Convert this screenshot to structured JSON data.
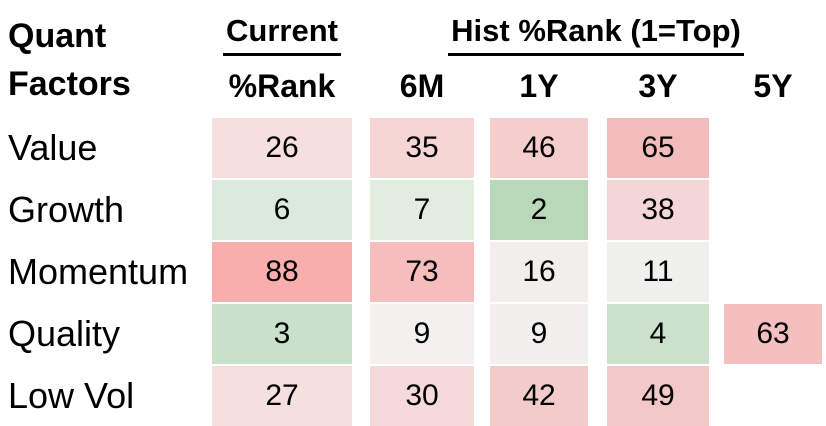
{
  "table": {
    "title_line1": "Quant",
    "title_line2": "Factors",
    "group_headers": [
      "Current",
      "Hist %Rank (1=Top)"
    ],
    "column_headers": [
      "%Rank",
      "6M",
      "1Y",
      "3Y",
      "5Y"
    ],
    "rows": [
      {
        "label": "Value",
        "cells": [
          {
            "value": "26",
            "color": "#f7dedf"
          },
          {
            "value": "35",
            "color": "#f6d6d5"
          },
          {
            "value": "46",
            "color": "#f5cdcd"
          },
          {
            "value": "65",
            "color": "#f3bcbc"
          },
          {
            "value": null,
            "color": null
          }
        ]
      },
      {
        "label": "Growth",
        "cells": [
          {
            "value": "6",
            "color": "#dceadd"
          },
          {
            "value": "7",
            "color": "#e2ecdf"
          },
          {
            "value": "2",
            "color": "#b9d8ba"
          },
          {
            "value": "38",
            "color": "#f5d6d6"
          },
          {
            "value": null,
            "color": null
          }
        ]
      },
      {
        "label": "Momentum",
        "cells": [
          {
            "value": "88",
            "color": "#f9aeae"
          },
          {
            "value": "73",
            "color": "#f7bcbc"
          },
          {
            "value": "16",
            "color": "#f2eeec"
          },
          {
            "value": "11",
            "color": "#f0f0ee"
          },
          {
            "value": null,
            "color": null
          }
        ]
      },
      {
        "label": "Quality",
        "cells": [
          {
            "value": "3",
            "color": "#c9e0c9"
          },
          {
            "value": "9",
            "color": "#f2f1f0"
          },
          {
            "value": "9",
            "color": "#f2f0ef"
          },
          {
            "value": "4",
            "color": "#cbe1cb"
          },
          {
            "value": "63",
            "color": "#f5bfbf"
          }
        ]
      },
      {
        "label": "Low Vol",
        "cells": [
          {
            "value": "27",
            "color": "#f6dfdf"
          },
          {
            "value": "30",
            "color": "#f6d9d9"
          },
          {
            "value": "42",
            "color": "#f4cbcb"
          },
          {
            "value": "49",
            "color": "#f3c8c8"
          },
          {
            "value": null,
            "color": null
          }
        ]
      }
    ]
  },
  "chart_data": {
    "type": "heatmap",
    "title": "Quant Factors",
    "row_labels": [
      "Value",
      "Growth",
      "Momentum",
      "Quality",
      "Low Vol"
    ],
    "column_groups": [
      "Current",
      "Hist %Rank (1=Top)"
    ],
    "columns": [
      "Current %Rank",
      "6M",
      "1Y",
      "3Y",
      "5Y"
    ],
    "values": [
      [
        26,
        35,
        46,
        65,
        null
      ],
      [
        6,
        7,
        2,
        38,
        null
      ],
      [
        88,
        73,
        16,
        11,
        null
      ],
      [
        3,
        9,
        9,
        4,
        63
      ],
      [
        27,
        30,
        42,
        49,
        null
      ]
    ],
    "scale_note": "1=Top",
    "color_scale": {
      "low_good": "#b9d8ba",
      "neutral": "#f0f0ee",
      "high_bad": "#f9aeae"
    },
    "value_range": [
      1,
      100
    ],
    "legend": "off",
    "grid": "off"
  }
}
